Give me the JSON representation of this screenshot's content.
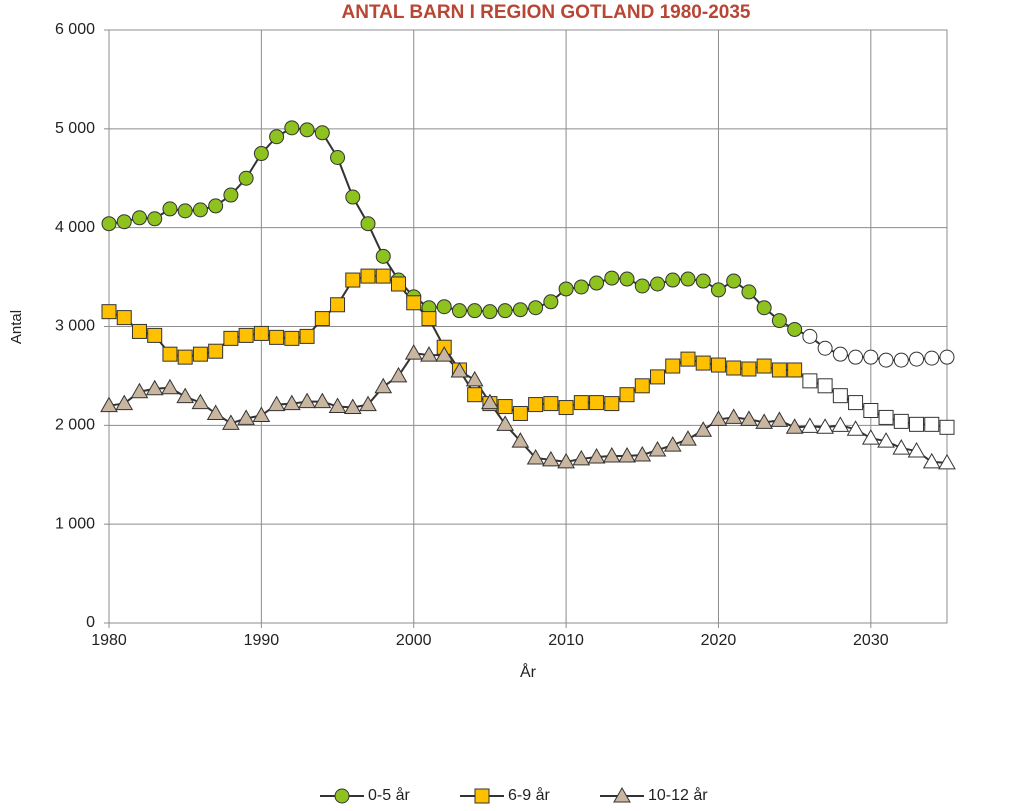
{
  "chart_data": {
    "type": "line",
    "title": "ANTAL BARN I REGION GOTLAND 1980-2035",
    "x_label": "År",
    "y_label": "Antal",
    "x": [
      1980,
      1981,
      1982,
      1983,
      1984,
      1985,
      1986,
      1987,
      1988,
      1989,
      1990,
      1991,
      1992,
      1993,
      1994,
      1995,
      1996,
      1997,
      1998,
      1999,
      2000,
      2001,
      2002,
      2003,
      2004,
      2005,
      2006,
      2007,
      2008,
      2009,
      2010,
      2011,
      2012,
      2013,
      2014,
      2015,
      2016,
      2017,
      2018,
      2019,
      2020,
      2021,
      2022,
      2023,
      2024,
      2025,
      2026,
      2027,
      2028,
      2029,
      2030,
      2031,
      2032,
      2033,
      2034,
      2035
    ],
    "series": [
      {
        "name": "0-5 år",
        "color": "#8dc21f",
        "marker": "circle",
        "values": [
          4040,
          4060,
          4100,
          4090,
          4190,
          4170,
          4180,
          4220,
          4330,
          4500,
          4750,
          4920,
          5010,
          4990,
          4960,
          4710,
          4310,
          4040,
          3710,
          3470,
          3300,
          3190,
          3200,
          3160,
          3160,
          3150,
          3160,
          3170,
          3190,
          3250,
          3380,
          3400,
          3440,
          3490,
          3480,
          3410,
          3430,
          3470,
          3480,
          3460,
          3370,
          3460,
          3350,
          3190,
          3060,
          2970,
          2900,
          2780,
          2720,
          2690,
          2690,
          2660,
          2660,
          2670,
          2680,
          2690
        ]
      },
      {
        "name": "6-9 år",
        "color": "#ffc000",
        "marker": "square",
        "values": [
          3150,
          3090,
          2950,
          2910,
          2720,
          2690,
          2720,
          2750,
          2880,
          2910,
          2930,
          2890,
          2880,
          2900,
          3080,
          3220,
          3470,
          3510,
          3510,
          3430,
          3240,
          3080,
          2790,
          2560,
          2310,
          2220,
          2190,
          2120,
          2210,
          2220,
          2180,
          2230,
          2230,
          2220,
          2310,
          2400,
          2490,
          2600,
          2670,
          2630,
          2610,
          2580,
          2570,
          2600,
          2560,
          2560,
          2450,
          2400,
          2300,
          2230,
          2150,
          2080,
          2040,
          2010,
          2010,
          1980
        ]
      },
      {
        "name": "10-12 år",
        "color": "#c9b6a0",
        "marker": "triangle",
        "values": [
          2200,
          2220,
          2340,
          2370,
          2380,
          2290,
          2230,
          2120,
          2020,
          2070,
          2100,
          2210,
          2220,
          2240,
          2240,
          2190,
          2180,
          2210,
          2390,
          2500,
          2730,
          2710,
          2710,
          2550,
          2460,
          2230,
          2010,
          1840,
          1670,
          1650,
          1630,
          1660,
          1680,
          1690,
          1690,
          1700,
          1750,
          1800,
          1860,
          1950,
          2060,
          2080,
          2060,
          2030,
          2050,
          1980,
          1990,
          1980,
          2000,
          1960,
          1870,
          1840,
          1770,
          1740,
          1630,
          1620
        ]
      }
    ],
    "line_color": "#333333",
    "open_markers_from": 2026,
    "xlim": [
      1980,
      2035
    ],
    "xticks": [
      1980,
      1990,
      2000,
      2010,
      2020,
      2030
    ],
    "ylim": [
      0,
      6000
    ],
    "yticks": [
      0,
      {
        "value": 1000,
        "label": "1 000"
      },
      {
        "value": 2000,
        "label": "2 000"
      },
      {
        "value": 3000,
        "label": "3 000"
      },
      {
        "value": 4000,
        "label": "4 000"
      },
      {
        "value": 5000,
        "label": "5 000"
      },
      {
        "value": 6000,
        "label": "6 000"
      }
    ],
    "grid": true,
    "legend": "bottom"
  }
}
